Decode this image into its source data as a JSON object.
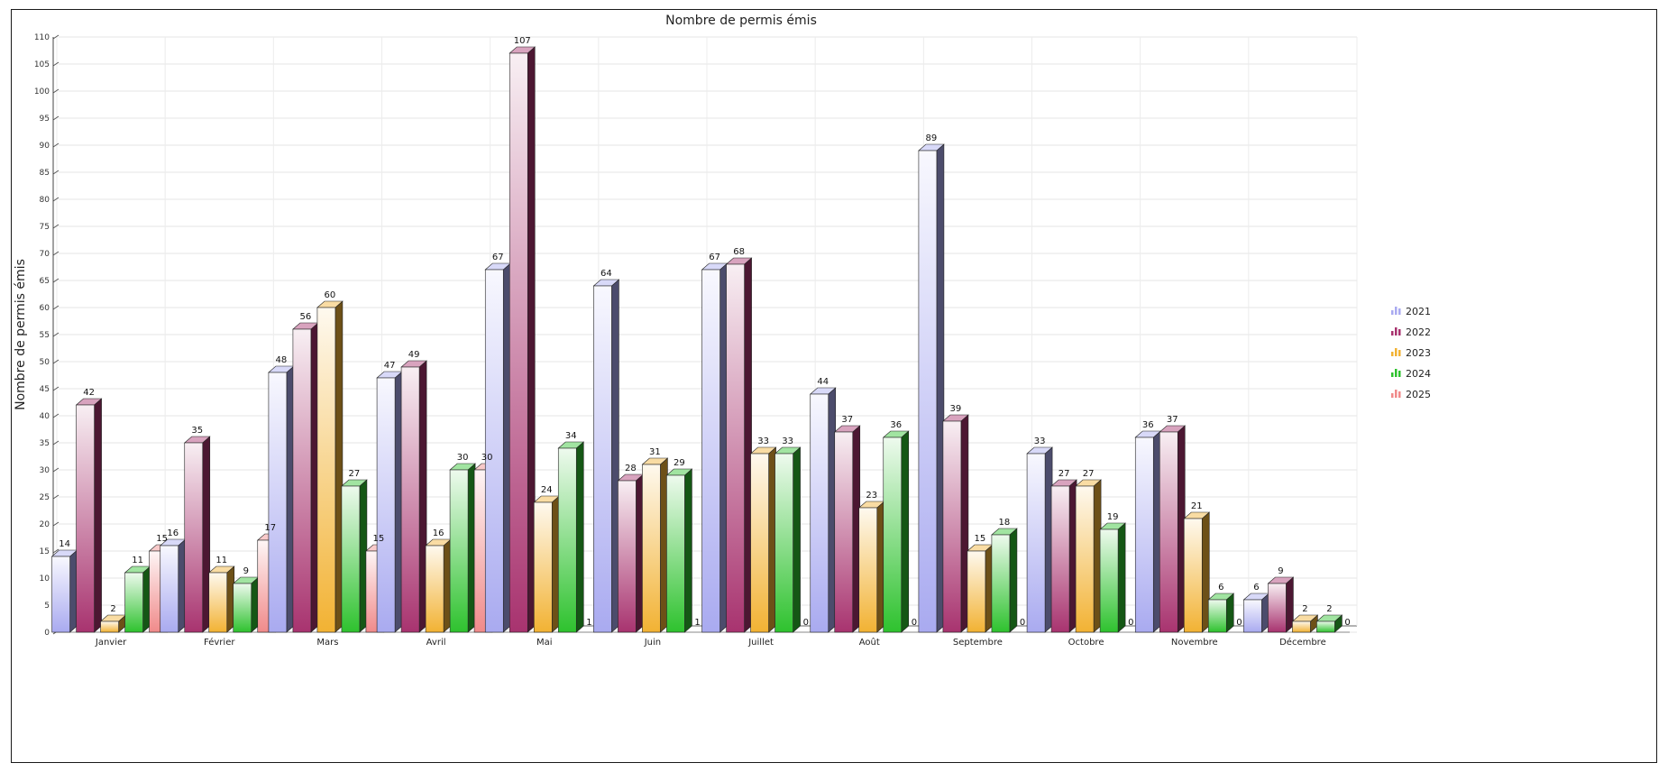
{
  "chart_data": {
    "type": "bar",
    "title": "Nombre de permis émis",
    "xlabel": "",
    "ylabel": "Nombre de permis émis",
    "ylim": [
      0,
      110
    ],
    "yticks": [
      0,
      5,
      10,
      15,
      20,
      25,
      30,
      35,
      40,
      45,
      50,
      55,
      60,
      65,
      70,
      75,
      80,
      85,
      90,
      95,
      100,
      105,
      110
    ],
    "grid": true,
    "legend_position": "right",
    "categories": [
      "Janvier",
      "Février",
      "Mars",
      "Avril",
      "Mai",
      "Juin",
      "Juillet",
      "Août",
      "Septembre",
      "Octobre",
      "Novembre",
      "Décembre"
    ],
    "series": [
      {
        "name": "2021",
        "color": "#a9aaf0",
        "values": [
          14,
          16,
          48,
          47,
          67,
          64,
          67,
          44,
          89,
          33,
          36,
          6
        ]
      },
      {
        "name": "2022",
        "color": "#a8336f",
        "values": [
          42,
          35,
          56,
          49,
          107,
          28,
          68,
          37,
          39,
          27,
          37,
          9
        ]
      },
      {
        "name": "2023",
        "color": "#f2b233",
        "values": [
          2,
          11,
          60,
          16,
          24,
          31,
          33,
          23,
          15,
          27,
          21,
          2
        ]
      },
      {
        "name": "2024",
        "color": "#2ec22e",
        "values": [
          11,
          9,
          27,
          30,
          34,
          29,
          33,
          36,
          18,
          19,
          6,
          2
        ]
      },
      {
        "name": "2025",
        "color": "#f08a8a",
        "values": [
          15,
          17,
          15,
          30,
          null,
          null,
          null,
          null,
          null,
          null,
          null,
          null
        ]
      }
    ],
    "zero_labels": [
      {
        "category": "Mai",
        "value": 1
      },
      {
        "category": "Juin",
        "value": 1
      },
      {
        "category": "Juillet",
        "value": 0
      },
      {
        "category": "Août",
        "value": 0
      },
      {
        "category": "Septembre",
        "value": 0
      },
      {
        "category": "Octobre",
        "value": 0
      },
      {
        "category": "Novembre",
        "value": 0
      },
      {
        "category": "Décembre",
        "value": 0
      }
    ]
  }
}
